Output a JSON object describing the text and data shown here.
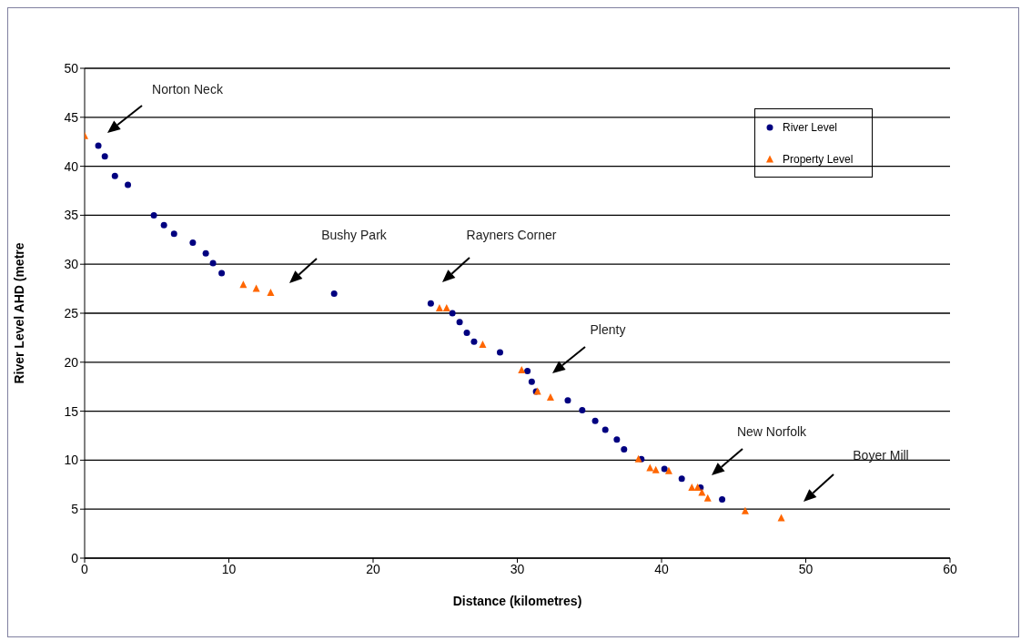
{
  "chart_data": {
    "type": "scatter",
    "xlabel": "Distance (kilometres)",
    "ylabel": "River Level AHD (metre",
    "xlim": [
      0,
      60
    ],
    "xticks": [
      0,
      10,
      20,
      30,
      40,
      50,
      60
    ],
    "ylim": [
      0,
      50
    ],
    "yticks": [
      0,
      5,
      10,
      15,
      20,
      25,
      30,
      35,
      40,
      45,
      50
    ],
    "grid": "y",
    "legend": "top right",
    "series": [
      {
        "name": "River Level",
        "color": "#000080",
        "marker": "circle",
        "x": [
          0.95,
          1.4,
          2.1,
          3.0,
          4.8,
          5.5,
          6.2,
          7.5,
          8.4,
          8.9,
          9.5,
          17.3,
          24.0,
          25.5,
          26.0,
          26.5,
          27.0,
          28.8,
          30.7,
          31.0,
          31.3,
          33.5,
          34.5,
          35.4,
          36.1,
          36.9,
          37.4,
          38.6,
          40.2,
          41.4,
          42.7,
          44.2
        ],
        "values": [
          42.1,
          41.0,
          39.0,
          38.1,
          35.0,
          34.0,
          33.1,
          32.2,
          31.1,
          30.1,
          29.1,
          27.0,
          26.0,
          25.0,
          24.1,
          23.0,
          22.1,
          21.0,
          19.1,
          18.0,
          17.0,
          16.1,
          15.1,
          14.0,
          13.1,
          12.1,
          11.1,
          10.1,
          9.1,
          8.1,
          7.2,
          6.0
        ]
      },
      {
        "name": "Property Level",
        "color": "#ff6600",
        "marker": "triangle",
        "x": [
          0,
          11.0,
          11.9,
          12.9,
          24.6,
          25.1,
          27.6,
          30.3,
          31.4,
          32.3,
          38.4,
          39.2,
          39.6,
          40.5,
          42.1,
          42.5,
          42.8,
          43.2,
          45.8,
          48.3
        ],
        "values": [
          43.1,
          27.9,
          27.5,
          27.1,
          25.5,
          25.5,
          21.8,
          19.2,
          17.0,
          16.4,
          10.1,
          9.2,
          9.0,
          8.9,
          7.2,
          7.2,
          6.7,
          6.1,
          4.8,
          4.1
        ]
      }
    ],
    "annotations": [
      "Norton Neck",
      "Bushy Park",
      "Rayners Corner",
      "Plenty",
      "New Norfolk",
      "Boyer Mill"
    ]
  }
}
